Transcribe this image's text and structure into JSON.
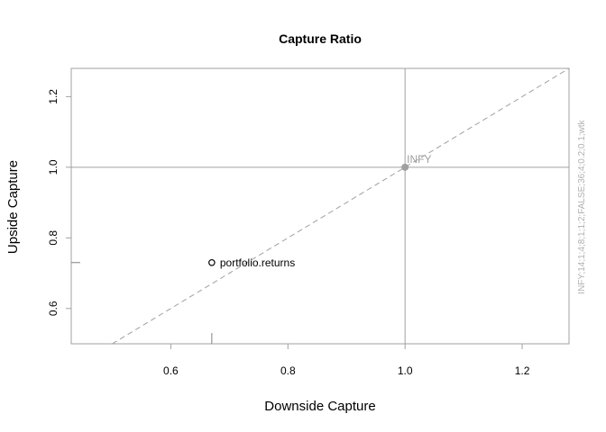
{
  "chart_data": {
    "type": "scatter",
    "title": "Capture Ratio",
    "xlabel": "Downside Capture",
    "ylabel": "Upside Capture",
    "xlim": [
      0.43,
      1.28
    ],
    "ylim": [
      0.5,
      1.28
    ],
    "xticks": [
      0.6,
      0.8,
      1.0,
      1.2
    ],
    "yticks": [
      0.6,
      0.8,
      1.0,
      1.2
    ],
    "xtick_labels": [
      "0.6",
      "0.8",
      "1.0",
      "1.2"
    ],
    "ytick_labels": [
      "0.6",
      "0.8",
      "1.0",
      "1.2"
    ],
    "reference_lines": {
      "vertical_x": 1.0,
      "horizontal_y": 1.0,
      "diagonal": "y = x"
    },
    "points": [
      {
        "label": "portfolio.returns",
        "x": 0.67,
        "y": 0.73,
        "style": "open-circle"
      },
      {
        "label": "INFY",
        "x": 1.0,
        "y": 1.0,
        "style": "filled-gray"
      }
    ],
    "side_note": "INFY;14;1;4;8;1;1;2;FALSE;36;4;0.2;0.1;wtk",
    "colors": {
      "frame": "#a0a0a0",
      "grid_lines": "#a0a0a0",
      "diagonal": "#a0a0a0",
      "benchmark": "#a0a0a0",
      "point": "#000000"
    }
  }
}
